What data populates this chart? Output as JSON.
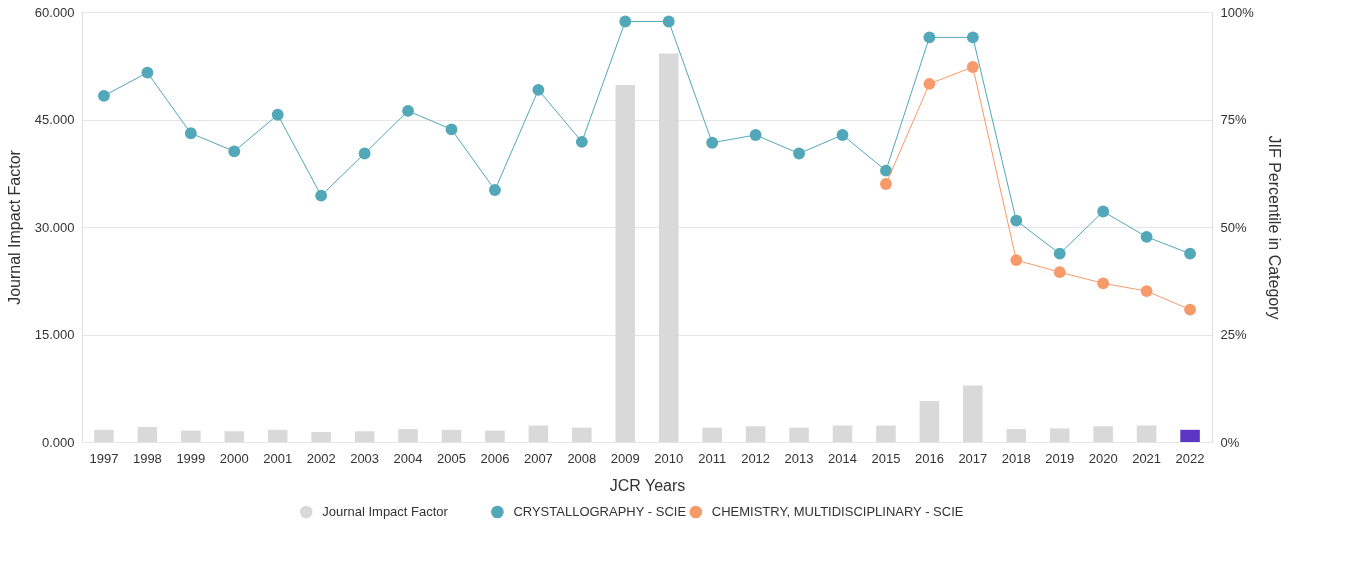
{
  "chart_data": {
    "type": "bar",
    "xlabel": "JCR Years",
    "ylabel": "Journal Impact Factor",
    "y2label": "JIF Percentile in Category",
    "categories": [
      "1997",
      "1998",
      "1999",
      "2000",
      "2001",
      "2002",
      "2003",
      "2004",
      "2005",
      "2006",
      "2007",
      "2008",
      "2009",
      "2010",
      "2011",
      "2012",
      "2013",
      "2014",
      "2015",
      "2016",
      "2017",
      "2018",
      "2019",
      "2020",
      "2021",
      "2022"
    ],
    "series": [
      {
        "name": "Journal Impact Factor",
        "color": "#d9d9d9",
        "colors": [
          "#d9d9d9",
          "#d9d9d9",
          "#d9d9d9",
          "#d9d9d9",
          "#d9d9d9",
          "#d9d9d9",
          "#d9d9d9",
          "#d9d9d9",
          "#d9d9d9",
          "#d9d9d9",
          "#d9d9d9",
          "#d9d9d9",
          "#d9d9d9",
          "#d9d9d9",
          "#d9d9d9",
          "#d9d9d9",
          "#d9d9d9",
          "#d9d9d9",
          "#d9d9d9",
          "#d9d9d9",
          "#d9d9d9",
          "#d9d9d9",
          "#d9d9d9",
          "#d9d9d9",
          "#d9d9d9",
          "#5c35c4"
        ],
        "values": [
          1.7,
          2.1,
          1.6,
          1.5,
          1.7,
          1.4,
          1.5,
          1.8,
          1.7,
          1.6,
          2.3,
          2.0,
          49.8,
          54.2,
          2.0,
          2.2,
          2.0,
          2.3,
          2.3,
          5.7,
          7.9,
          1.8,
          1.9,
          2.2,
          2.3,
          1.7
        ]
      },
      {
        "name": "CRYSTALLOGRAPHY - SCIE",
        "type": "line",
        "axis": "y2",
        "color": "#52a7b8",
        "values": [
          80.5,
          85.9,
          71.8,
          67.6,
          76.1,
          57.3,
          67.1,
          77.0,
          72.7,
          58.6,
          81.9,
          69.8,
          97.8,
          97.8,
          69.6,
          71.4,
          67.1,
          71.4,
          63.1,
          94.1,
          94.1,
          51.5,
          43.8,
          53.6,
          47.7,
          43.8
        ]
      },
      {
        "name": "CHEMISTRY, MULTIDISCIPLINARY - SCIE",
        "type": "line",
        "axis": "y2",
        "color": "#f79a6a",
        "values": [
          null,
          null,
          null,
          null,
          null,
          null,
          null,
          null,
          null,
          null,
          null,
          null,
          null,
          null,
          null,
          null,
          null,
          null,
          60.0,
          83.3,
          87.2,
          42.3,
          39.5,
          36.9,
          35.1,
          30.8
        ]
      }
    ],
    "ylim": [
      0,
      60
    ],
    "yticks": [
      {
        "value": 0,
        "label": "0.000"
      },
      {
        "value": 15,
        "label": "15.000"
      },
      {
        "value": 30,
        "label": "30.000"
      },
      {
        "value": 45,
        "label": "45.000"
      },
      {
        "value": 60,
        "label": "60.000"
      }
    ],
    "y2lim": [
      0,
      100
    ],
    "y2ticks": [
      {
        "value": 0,
        "label": "0%"
      },
      {
        "value": 25,
        "label": "25%"
      },
      {
        "value": 50,
        "label": "50%"
      },
      {
        "value": 75,
        "label": "75%"
      },
      {
        "value": 100,
        "label": "100%"
      }
    ],
    "grid": "y",
    "legend": "bottom",
    "marker": "circle",
    "line_style": "solid"
  }
}
